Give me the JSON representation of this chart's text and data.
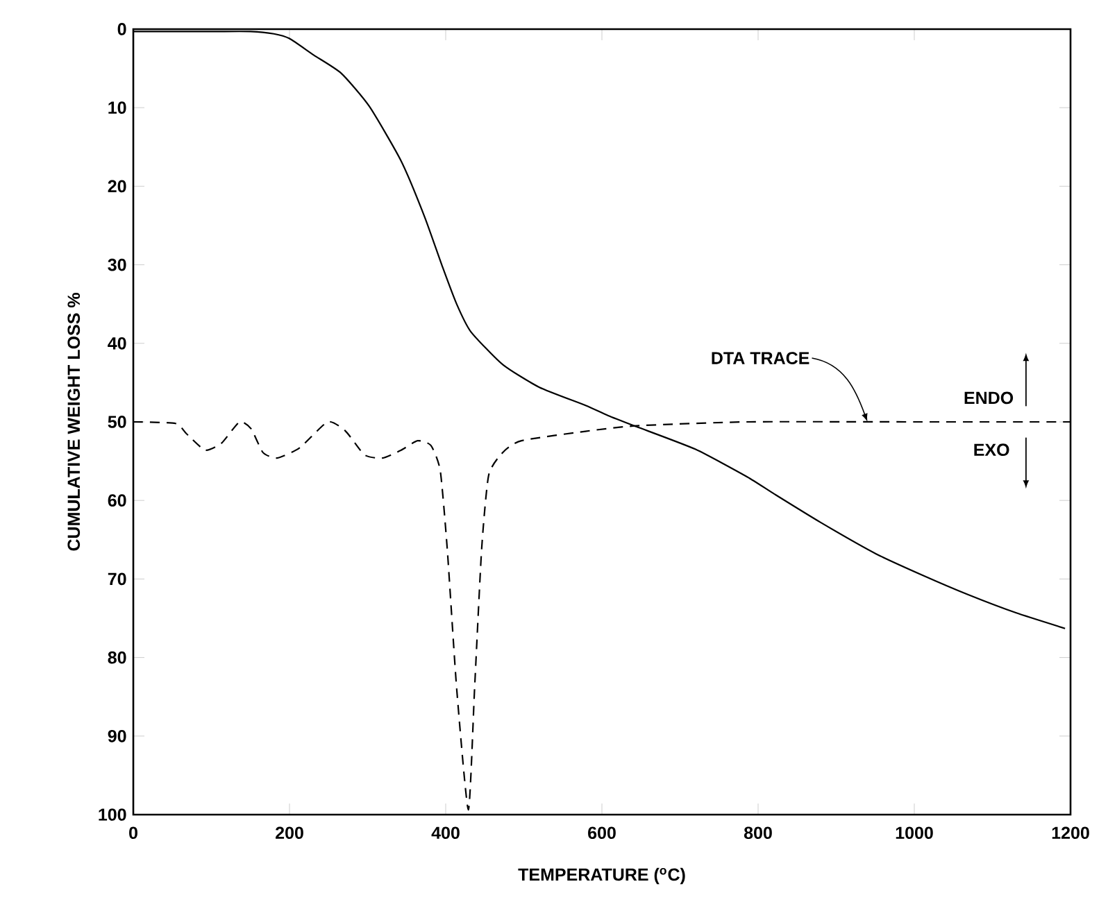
{
  "chart_data": {
    "type": "line",
    "xlabel": "TEMPERATURE ($^{o}$C)",
    "ylabel": "CUMULATIVE WEIGHT LOSS %",
    "xlim": [
      0,
      1200
    ],
    "ylim": [
      100,
      0
    ],
    "xticks": [
      0,
      200,
      400,
      600,
      800,
      1000,
      1200
    ],
    "yticks": [
      0,
      10,
      20,
      30,
      40,
      50,
      60,
      70,
      80,
      90,
      100
    ],
    "grid": false,
    "marker": "none",
    "series": [
      {
        "color": "#000000",
        "line_style": "solid",
        "x": [
          0,
          100,
          150,
          180,
          200,
          231,
          266,
          302,
          343,
          373,
          396,
          414,
          432,
          473,
          520,
          579,
          608,
          644,
          720,
          786,
          821,
          880,
          951,
          1010,
          1069,
          1130,
          1193
        ],
        "values": [
          0.3,
          0.3,
          0.3,
          0.6,
          1.2,
          3.3,
          5.6,
          9.8,
          16.8,
          23.9,
          30.3,
          35,
          38.5,
          42.7,
          45.6,
          47.9,
          49.2,
          50.6,
          53.5,
          57,
          59.2,
          62.8,
          66.8,
          69.5,
          72,
          74.3,
          76.3
        ]
      },
      {
        "color": "#000000",
        "line_style": "dashed",
        "x": [
          0,
          54,
          68,
          92,
          113,
          136,
          151,
          166,
          184,
          213,
          249,
          272,
          296,
          319,
          343,
          364,
          381,
          393,
          402,
          414,
          429,
          437,
          446,
          455,
          473,
          497,
          579,
          644,
          786,
          1000,
          1200
        ],
        "values": [
          50,
          50.2,
          51.5,
          53.6,
          52.7,
          50,
          50.9,
          53.9,
          54.6,
          53.3,
          50,
          51.2,
          54.2,
          54.6,
          53.6,
          52.4,
          53,
          56.2,
          66.2,
          83.9,
          99.4,
          83.9,
          66.2,
          56.8,
          53.9,
          52.4,
          51.2,
          50.5,
          50,
          50,
          50
        ]
      }
    ],
    "annotations": [
      {
        "text": "DTA TRACE",
        "x": 940,
        "y": 50
      },
      "ENDO",
      "EXO"
    ]
  }
}
